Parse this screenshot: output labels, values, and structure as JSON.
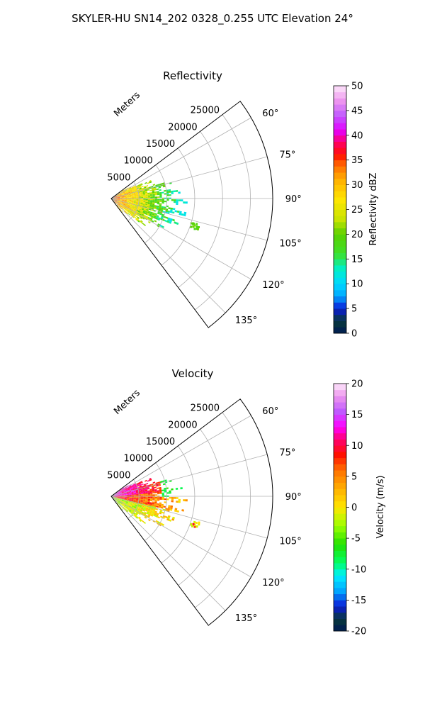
{
  "figure": {
    "title": "SKYLER-HU  SN14_202  0328_0.255 UTC Elevation 24°"
  },
  "chart_data": [
    {
      "type": "heatmap",
      "subtype": "polar-sector-radar",
      "title": "Reflectivity",
      "radial_axis_label": "Meters",
      "radial_ticks": [
        5000,
        10000,
        15000,
        20000,
        25000
      ],
      "rlim": [
        0,
        29000
      ],
      "angular_ticks_deg": [
        60,
        75,
        90,
        105,
        120,
        135
      ],
      "angular_tick_labels": [
        "60°",
        "75°",
        "90°",
        "105°",
        "120°",
        "135°"
      ],
      "theta_range_deg": [
        53,
        143
      ],
      "grid": true,
      "colorbar": {
        "label": "Reflectivity dBZ",
        "range": [
          0,
          50
        ],
        "ticks": [
          0,
          5,
          10,
          15,
          20,
          25,
          30,
          35,
          40,
          45,
          50
        ]
      },
      "echo_extent_m": [
        0,
        14000
      ],
      "isolated_echo": {
        "azimuth_deg": 108,
        "range_m": 15500
      }
    },
    {
      "type": "heatmap",
      "subtype": "polar-sector-radar",
      "title": "Velocity",
      "radial_axis_label": "Meters",
      "radial_ticks": [
        5000,
        10000,
        15000,
        20000,
        25000
      ],
      "rlim": [
        0,
        29000
      ],
      "angular_ticks_deg": [
        60,
        75,
        90,
        105,
        120,
        135
      ],
      "angular_tick_labels": [
        "60°",
        "75°",
        "90°",
        "105°",
        "120°",
        "135°"
      ],
      "theta_range_deg": [
        53,
        143
      ],
      "grid": true,
      "colorbar": {
        "label": "Velocity (m/s)",
        "range": [
          -20,
          20
        ],
        "ticks": [
          -20,
          -15,
          -10,
          -5,
          0,
          5,
          10,
          15,
          20
        ]
      },
      "echo_extent_m": [
        0,
        14000
      ],
      "isolated_echo": {
        "azimuth_deg": 108,
        "range_m": 15500
      }
    }
  ]
}
